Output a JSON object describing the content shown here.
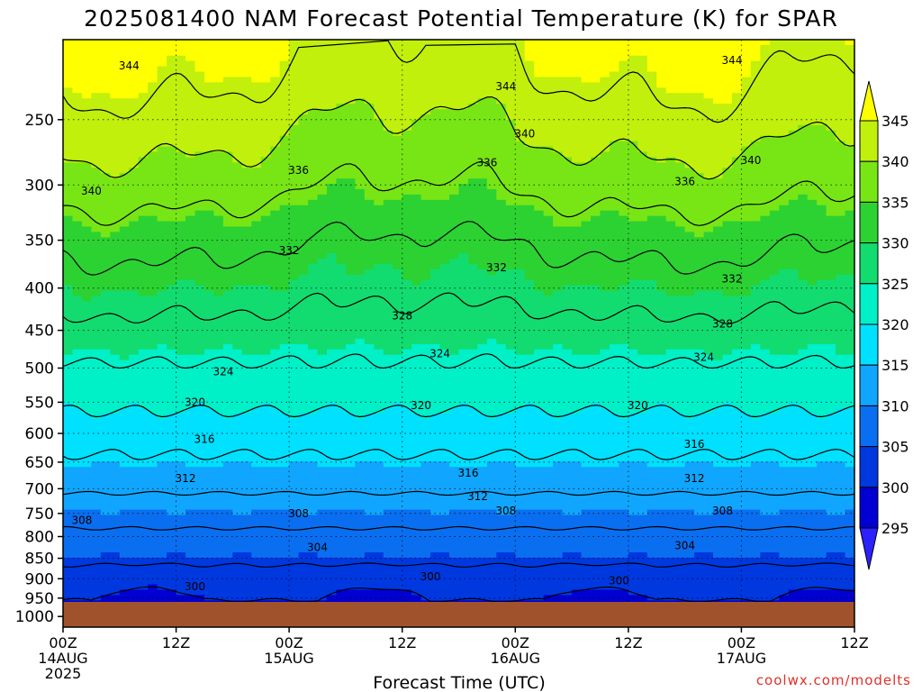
{
  "chart_data": {
    "type": "contour",
    "title": "2025081400 NAM Forecast Potential Temperature (K) for SPAR",
    "xlabel": "Forecast Time (UTC)",
    "ylabel": "",
    "credit": "coolwx.com/modelts",
    "y_axis": {
      "scale": "log",
      "ticks": [
        250,
        300,
        350,
        400,
        450,
        500,
        550,
        600,
        650,
        700,
        750,
        800,
        850,
        900,
        950,
        1000
      ],
      "range": [
        200,
        1030
      ],
      "inverted": true
    },
    "x_axis": {
      "range_hours": [
        0,
        84
      ],
      "ticks": [
        {
          "hour": 0,
          "label": "00Z",
          "sub": "14AUG",
          "year": "2025"
        },
        {
          "hour": 12,
          "label": "12Z",
          "sub": "",
          "year": ""
        },
        {
          "hour": 24,
          "label": "00Z",
          "sub": "15AUG",
          "year": ""
        },
        {
          "hour": 36,
          "label": "12Z",
          "sub": "",
          "year": ""
        },
        {
          "hour": 48,
          "label": "00Z",
          "sub": "16AUG",
          "year": ""
        },
        {
          "hour": 60,
          "label": "12Z",
          "sub": "",
          "year": ""
        },
        {
          "hour": 72,
          "label": "00Z",
          "sub": "17AUG",
          "year": ""
        },
        {
          "hour": 84,
          "label": "12Z",
          "sub": "",
          "year": ""
        }
      ]
    },
    "colorbar": {
      "levels": [
        295,
        300,
        305,
        310,
        315,
        320,
        325,
        330,
        335,
        340,
        345
      ],
      "colors": [
        "#2c20ff",
        "#0000d2",
        "#0038e0",
        "#0a6ef0",
        "#10a6ff",
        "#00e0ff",
        "#00f0c8",
        "#12dc70",
        "#2cd232",
        "#78e614",
        "#c0f00c",
        "#ffff00"
      ]
    },
    "contour_interval": 4,
    "contour_values": [
      300,
      304,
      308,
      312,
      316,
      320,
      324,
      328,
      332,
      336,
      340,
      344
    ],
    "labeled_contours": [
      {
        "value": 344,
        "hour": 7,
        "p": 215
      },
      {
        "value": 344,
        "hour": 47,
        "p": 228
      },
      {
        "value": 344,
        "hour": 71,
        "p": 212
      },
      {
        "value": 340,
        "hour": 3,
        "p": 305
      },
      {
        "value": 340,
        "hour": 49,
        "p": 260
      },
      {
        "value": 340,
        "hour": 73,
        "p": 280
      },
      {
        "value": 336,
        "hour": 25,
        "p": 288
      },
      {
        "value": 336,
        "hour": 45,
        "p": 282
      },
      {
        "value": 336,
        "hour": 66,
        "p": 297
      },
      {
        "value": 332,
        "hour": 24,
        "p": 360
      },
      {
        "value": 332,
        "hour": 46,
        "p": 378
      },
      {
        "value": 332,
        "hour": 71,
        "p": 390
      },
      {
        "value": 328,
        "hour": 36,
        "p": 432
      },
      {
        "value": 328,
        "hour": 70,
        "p": 442
      },
      {
        "value": 324,
        "hour": 17,
        "p": 505
      },
      {
        "value": 324,
        "hour": 40,
        "p": 480
      },
      {
        "value": 324,
        "hour": 68,
        "p": 485
      },
      {
        "value": 320,
        "hour": 14,
        "p": 550
      },
      {
        "value": 320,
        "hour": 38,
        "p": 555
      },
      {
        "value": 320,
        "hour": 61,
        "p": 555
      },
      {
        "value": 316,
        "hour": 15,
        "p": 610
      },
      {
        "value": 316,
        "hour": 43,
        "p": 670
      },
      {
        "value": 316,
        "hour": 67,
        "p": 618
      },
      {
        "value": 312,
        "hour": 13,
        "p": 680
      },
      {
        "value": 312,
        "hour": 44,
        "p": 715
      },
      {
        "value": 312,
        "hour": 67,
        "p": 680
      },
      {
        "value": 308,
        "hour": 2,
        "p": 765
      },
      {
        "value": 308,
        "hour": 25,
        "p": 750
      },
      {
        "value": 308,
        "hour": 47,
        "p": 745
      },
      {
        "value": 308,
        "hour": 70,
        "p": 745
      },
      {
        "value": 304,
        "hour": 27,
        "p": 825
      },
      {
        "value": 304,
        "hour": 66,
        "p": 820
      },
      {
        "value": 300,
        "hour": 14,
        "p": 920
      },
      {
        "value": 300,
        "hour": 39,
        "p": 895
      },
      {
        "value": 300,
        "hour": 59,
        "p": 905
      }
    ],
    "grid": true
  }
}
